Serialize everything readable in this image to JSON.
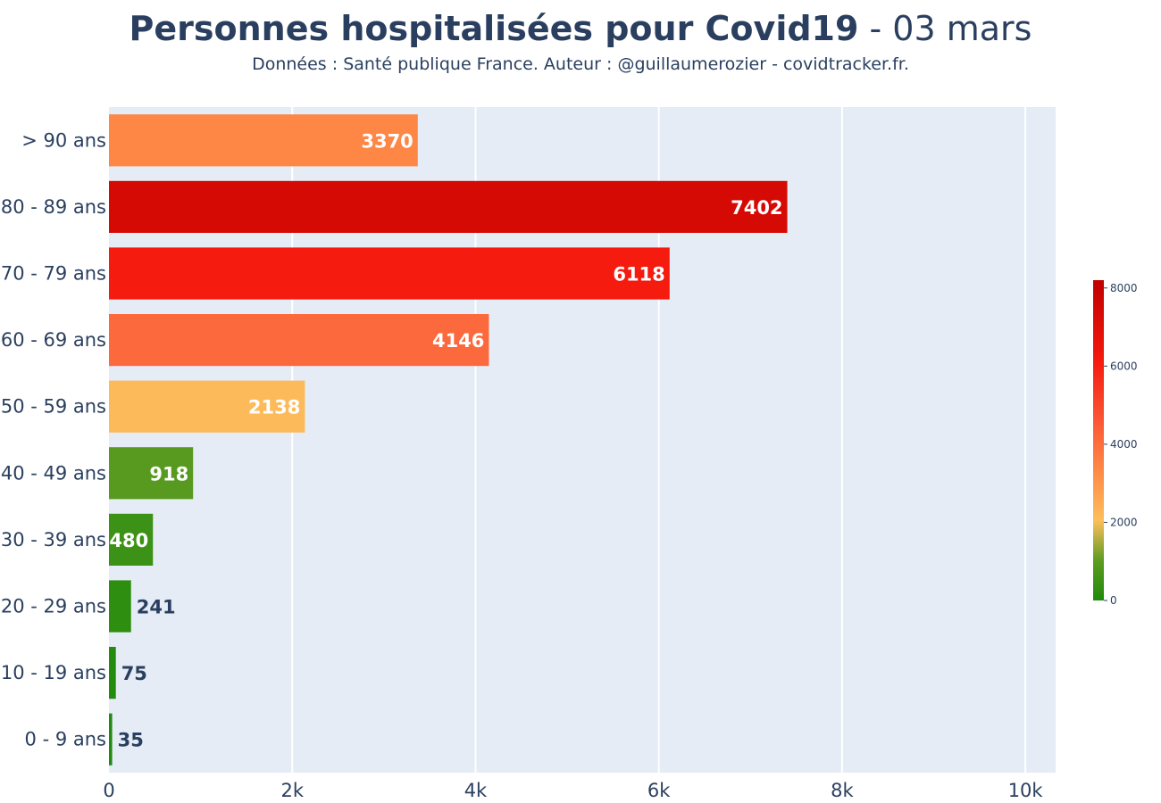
{
  "title_main": "Personnes hospitalisées pour Covid19",
  "title_suffix": " - 03 mars",
  "subtitle": "Données : Santé publique France. Auteur : @guillaumerozier - covidtracker.fr.",
  "chart_data": {
    "type": "bar",
    "orientation": "horizontal",
    "categories": [
      "> 90 ans",
      "80 - 89 ans",
      "70 - 79 ans",
      "60 - 69 ans",
      "50 - 59 ans",
      "40 - 49 ans",
      "30 - 39 ans",
      "20 - 29 ans",
      "10 - 19 ans",
      "0 - 9 ans"
    ],
    "values": [
      3370,
      7402,
      6118,
      4146,
      2138,
      918,
      480,
      241,
      75,
      35
    ],
    "data_labels": [
      "3370",
      "7402",
      "6118",
      "4146",
      "2138",
      "918",
      "480",
      "241",
      "75",
      "35"
    ],
    "x_ticks": [
      0,
      2000,
      4000,
      6000,
      8000,
      10000
    ],
    "x_tick_labels": [
      "0",
      "2k",
      "4k",
      "6k",
      "8k",
      "10k"
    ],
    "xlim": [
      0,
      10330
    ],
    "grid": true,
    "colorscale": [
      {
        "stop": 0,
        "color": "#1e8a0b"
      },
      {
        "stop": 0.125,
        "color": "#5f9c22"
      },
      {
        "stop": 0.25,
        "color": "#fdbe5d"
      },
      {
        "stop": 0.4,
        "color": "#fe8b47"
      },
      {
        "stop": 0.55,
        "color": "#fb5a37"
      },
      {
        "stop": 0.75,
        "color": "#f51a0e"
      },
      {
        "stop": 1,
        "color": "#c00000"
      }
    ],
    "colorbar": {
      "range": [
        0,
        8200
      ],
      "ticks": [
        0,
        2000,
        4000,
        6000,
        8000
      ],
      "tick_labels": [
        "0",
        "2000",
        "4000",
        "6000",
        "8000"
      ],
      "placement": "right"
    },
    "label_colors": {
      "inside": "#ffffff",
      "outside": "#2a3f5f"
    }
  }
}
